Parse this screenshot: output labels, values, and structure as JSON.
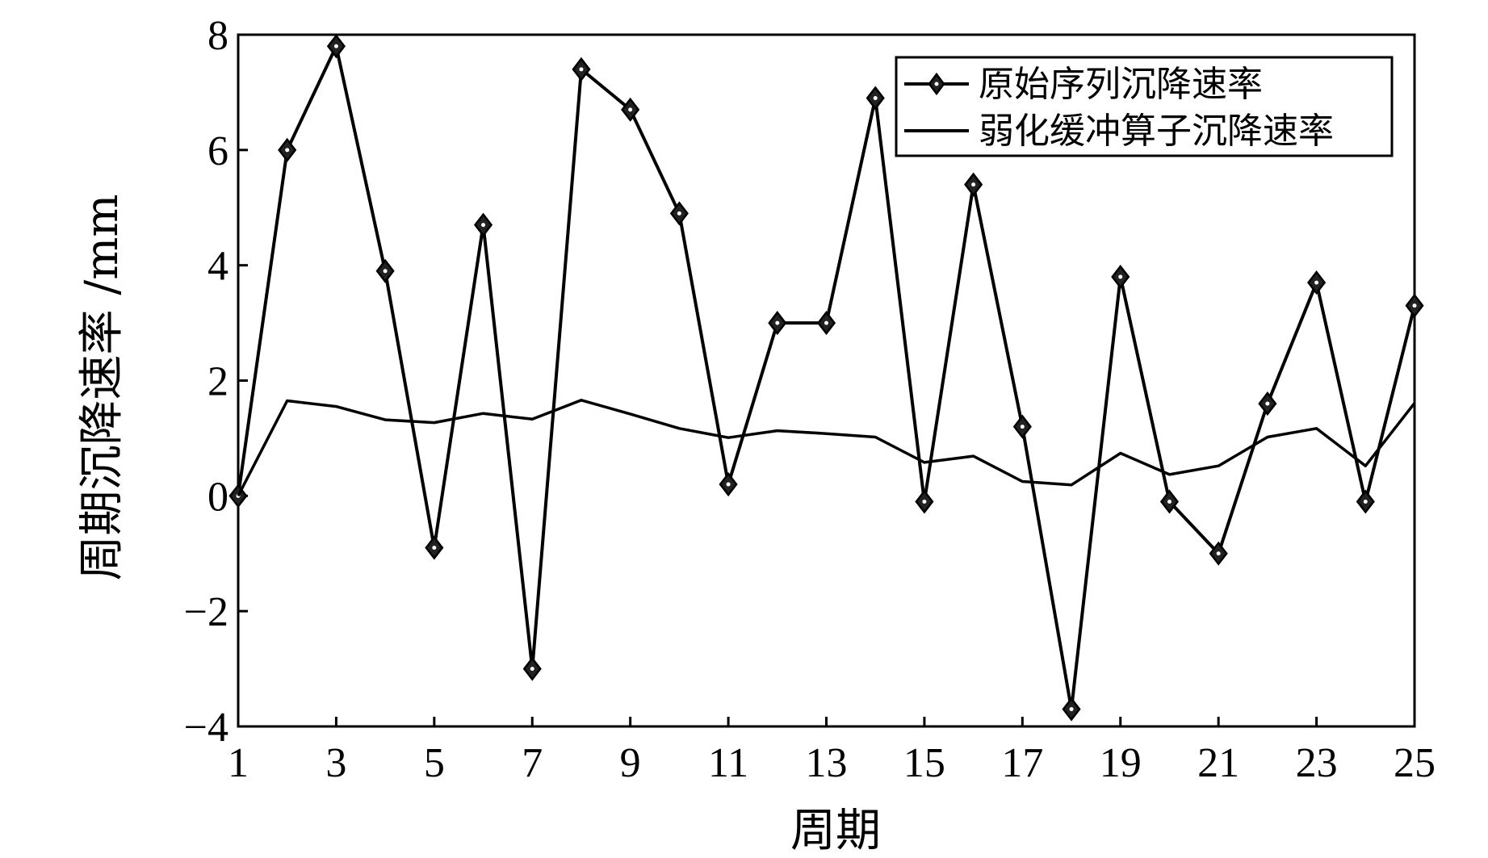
{
  "chart_data": {
    "type": "line",
    "xlabel": "周期",
    "ylabel": "周期沉降速率 /mm",
    "xlim": [
      1,
      25
    ],
    "ylim": [
      -4,
      8
    ],
    "xticks": [
      1,
      3,
      5,
      7,
      9,
      11,
      13,
      15,
      17,
      19,
      21,
      23,
      25
    ],
    "yticks": [
      -4,
      -2,
      0,
      2,
      4,
      6,
      8
    ],
    "ytick_labels": [
      "−4",
      "−2",
      "0",
      "2",
      "4",
      "6",
      "8"
    ],
    "grid": false,
    "legend_position": "top-right",
    "x": [
      1,
      2,
      3,
      4,
      5,
      6,
      7,
      8,
      9,
      10,
      11,
      12,
      13,
      14,
      15,
      16,
      17,
      18,
      19,
      20,
      21,
      22,
      23,
      24,
      25
    ],
    "series": [
      {
        "name": "原始序列沉降速率",
        "marker": "diamond",
        "color": "#000000",
        "values": [
          0.0,
          6.0,
          7.8,
          3.9,
          -0.9,
          4.7,
          -3.0,
          7.4,
          6.7,
          4.9,
          0.2,
          3.0,
          3.0,
          6.9,
          -0.1,
          5.4,
          1.2,
          -3.7,
          3.8,
          -0.1,
          -1.0,
          1.6,
          3.7,
          -0.1,
          3.3
        ]
      },
      {
        "name": "弱化缓冲算子沉降速率",
        "marker": "none",
        "color": "#000000",
        "values": [
          0.0,
          1.65,
          1.55,
          1.32,
          1.27,
          1.43,
          1.33,
          1.66,
          1.42,
          1.17,
          1.01,
          1.13,
          1.08,
          1.02,
          0.58,
          0.69,
          0.25,
          0.19,
          0.74,
          0.37,
          0.52,
          1.02,
          1.17,
          0.52,
          1.61
        ]
      }
    ]
  }
}
